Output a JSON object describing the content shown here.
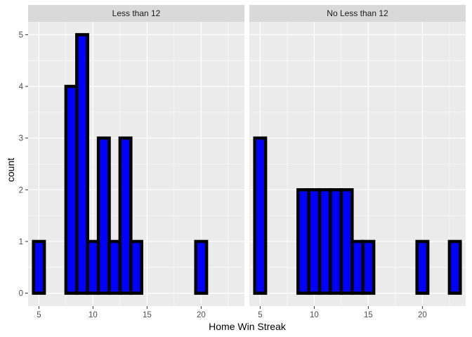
{
  "chart_data": {
    "type": "bar",
    "xlabel": "Home Win Streak",
    "ylabel": "count",
    "xlim": [
      4.0,
      24.0
    ],
    "ylim": [
      -0.25,
      5.25
    ],
    "x_ticks": [
      5,
      10,
      15,
      20
    ],
    "y_ticks": [
      0,
      1,
      2,
      3,
      4,
      5
    ],
    "bin_width": 1,
    "grid": true,
    "legend": "none",
    "colors": {
      "fill": "#0000ff",
      "outline": "#000000",
      "panel": "#ebebeb",
      "strip": "#d9d9d9",
      "grid": "#ffffff"
    },
    "bin_centers": [
      5,
      6,
      7,
      8,
      9,
      10,
      11,
      12,
      13,
      14,
      15,
      16,
      17,
      18,
      19,
      20,
      21,
      22,
      23
    ],
    "panels": [
      {
        "strip_label": "Less than 12",
        "counts": [
          1,
          0,
          0,
          4,
          5,
          1,
          3,
          1,
          3,
          1,
          0,
          0,
          0,
          0,
          0,
          1,
          0,
          0,
          0
        ]
      },
      {
        "strip_label": "No Less than 12",
        "counts": [
          3,
          0,
          0,
          0,
          2,
          2,
          2,
          2,
          2,
          1,
          1,
          0,
          0,
          0,
          0,
          1,
          0,
          0,
          1
        ]
      }
    ]
  }
}
